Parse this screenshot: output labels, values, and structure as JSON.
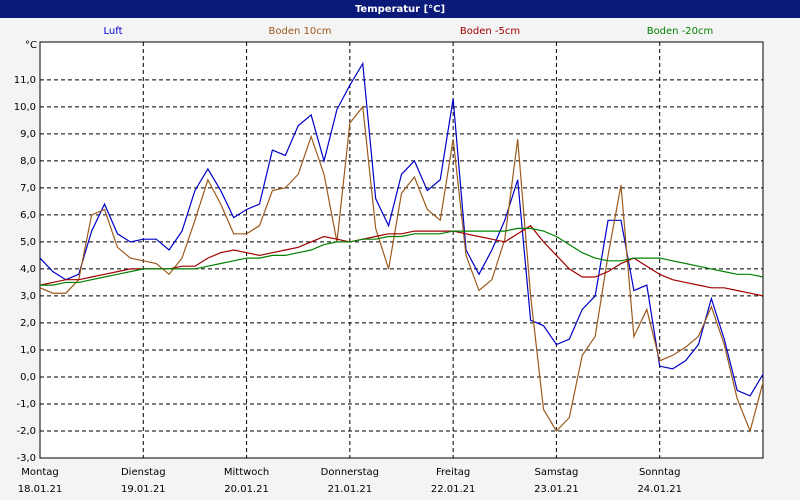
{
  "chart_data": {
    "type": "line",
    "title": "Temperatur [°C]",
    "y_unit": "°C",
    "x": [
      0,
      0.125,
      0.25,
      0.375,
      0.5,
      0.625,
      0.75,
      0.875,
      1,
      1.125,
      1.25,
      1.375,
      1.5,
      1.625,
      1.75,
      1.875,
      2,
      2.125,
      2.25,
      2.375,
      2.5,
      2.625,
      2.75,
      2.875,
      3,
      3.125,
      3.25,
      3.375,
      3.5,
      3.625,
      3.75,
      3.875,
      4,
      4.125,
      4.25,
      4.375,
      4.5,
      4.625,
      4.75,
      4.875,
      5,
      5.125,
      5.25,
      5.375,
      5.5,
      5.625,
      5.75,
      5.875,
      6,
      6.125,
      6.25,
      6.375,
      6.5,
      6.625,
      6.75,
      6.875,
      7
    ],
    "xlim": [
      0,
      7
    ],
    "xticks": [
      {
        "value": 0,
        "label": "Montag",
        "date": "18.01.21"
      },
      {
        "value": 1,
        "label": "Dienstag",
        "date": "19.01.21"
      },
      {
        "value": 2,
        "label": "Mittwoch",
        "date": "20.01.21"
      },
      {
        "value": 3,
        "label": "Donnerstag",
        "date": "21.01.21"
      },
      {
        "value": 4,
        "label": "Freitag",
        "date": "22.01.21"
      },
      {
        "value": 5,
        "label": "Samstag",
        "date": "23.01.21"
      },
      {
        "value": 6,
        "label": "Sonntag",
        "date": "24.01.21"
      },
      7
    ],
    "ylim": [
      -3,
      12.4
    ],
    "yticks": [
      {
        "value": -3,
        "label": "-3,0"
      },
      {
        "value": -2,
        "label": "-2,0"
      },
      {
        "value": -1,
        "label": "-1,0"
      },
      {
        "value": 0,
        "label": "0,0"
      },
      {
        "value": 1,
        "label": "1,0"
      },
      {
        "value": 2,
        "label": "2,0"
      },
      {
        "value": 3,
        "label": "3,0"
      },
      {
        "value": 4,
        "label": "4,0"
      },
      {
        "value": 5,
        "label": "5,0"
      },
      {
        "value": 6,
        "label": "6,0"
      },
      {
        "value": 7,
        "label": "7,0"
      },
      {
        "value": 8,
        "label": "8,0"
      },
      {
        "value": 9,
        "label": "9,0"
      },
      {
        "value": 10,
        "label": "10,0"
      },
      {
        "value": 11,
        "label": "11,0"
      }
    ],
    "grid": true,
    "series": [
      {
        "name": "Luft",
        "color": "#0000c8",
        "values": [
          4.4,
          3.9,
          3.6,
          3.8,
          5.4,
          6.4,
          5.3,
          5.0,
          5.1,
          5.1,
          4.7,
          5.4,
          6.9,
          7.7,
          6.9,
          5.9,
          6.2,
          6.4,
          8.4,
          8.2,
          9.3,
          9.7,
          8.0,
          9.9,
          10.8,
          11.6,
          6.6,
          5.6,
          7.5,
          8.0,
          6.9,
          7.3,
          10.3,
          4.7,
          3.8,
          4.7,
          5.8,
          7.3,
          2.1,
          1.9,
          1.2,
          1.4,
          2.5,
          3.0,
          5.8,
          5.8,
          3.2,
          3.4,
          0.4,
          0.3,
          0.6,
          1.2,
          2.9,
          1.4,
          -0.5,
          -0.7,
          0.1
        ]
      },
      {
        "name": "Boden 10cm",
        "color": "#9c5a1c",
        "values": [
          3.3,
          3.1,
          3.1,
          3.6,
          6.0,
          6.2,
          4.8,
          4.4,
          4.3,
          4.2,
          3.8,
          4.4,
          5.8,
          7.3,
          6.4,
          5.3,
          5.3,
          5.6,
          6.9,
          7.0,
          7.5,
          8.9,
          7.5,
          5.0,
          9.4,
          10.0,
          5.5,
          4.0,
          6.8,
          7.4,
          6.2,
          5.8,
          8.8,
          4.5,
          3.2,
          3.6,
          5.1,
          8.8,
          3.0,
          -1.2,
          -2.0,
          -1.5,
          0.8,
          1.5,
          4.5,
          7.1,
          1.5,
          2.5,
          0.6,
          0.8,
          1.1,
          1.5,
          2.6,
          1.2,
          -0.8,
          -2.0,
          -0.2
        ]
      },
      {
        "name": "Boden -5cm",
        "color": "#a00000",
        "values": [
          3.4,
          3.5,
          3.6,
          3.6,
          3.7,
          3.8,
          3.9,
          4.0,
          4.0,
          4.0,
          4.0,
          4.1,
          4.1,
          4.4,
          4.6,
          4.7,
          4.6,
          4.5,
          4.6,
          4.7,
          4.8,
          5.0,
          5.2,
          5.1,
          5.0,
          5.1,
          5.2,
          5.3,
          5.3,
          5.4,
          5.4,
          5.4,
          5.4,
          5.3,
          5.2,
          5.1,
          5.0,
          5.3,
          5.6,
          5.0,
          4.5,
          4.0,
          3.7,
          3.7,
          3.9,
          4.2,
          4.4,
          4.1,
          3.8,
          3.6,
          3.5,
          3.4,
          3.3,
          3.3,
          3.2,
          3.1,
          3.0
        ]
      },
      {
        "name": "Boden -20cm",
        "color": "#008000",
        "values": [
          3.4,
          3.4,
          3.5,
          3.5,
          3.6,
          3.7,
          3.8,
          3.9,
          4.0,
          4.0,
          4.0,
          4.0,
          4.0,
          4.1,
          4.2,
          4.3,
          4.4,
          4.4,
          4.5,
          4.5,
          4.6,
          4.7,
          4.9,
          5.0,
          5.0,
          5.1,
          5.1,
          5.2,
          5.2,
          5.3,
          5.3,
          5.3,
          5.4,
          5.4,
          5.4,
          5.4,
          5.4,
          5.5,
          5.5,
          5.4,
          5.2,
          4.9,
          4.6,
          4.4,
          4.3,
          4.3,
          4.4,
          4.4,
          4.4,
          4.3,
          4.2,
          4.1,
          4.0,
          3.9,
          3.8,
          3.8,
          3.7
        ]
      }
    ]
  }
}
